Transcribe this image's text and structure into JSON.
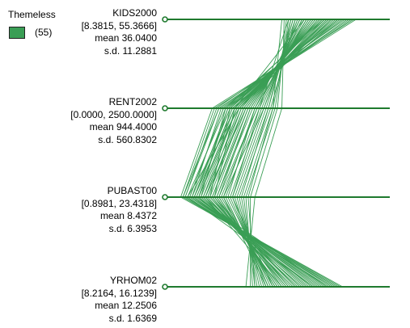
{
  "legend": {
    "title": "Themeless",
    "count_label": "(55)",
    "color": "#3a9e55"
  },
  "chart_data": {
    "type": "parallel_coordinates",
    "series_color": "#3a9e55",
    "axis_color": "#1f7a2e",
    "n_records": 55,
    "axes": [
      {
        "name": "KIDS2000",
        "range_label": "[8.3815, 55.3666]",
        "mean_label": "mean  36.0400",
        "sd_label": "s.d.  11.2881",
        "min": 8.3815,
        "max": 55.3666
      },
      {
        "name": "RENT2002",
        "range_label": "[0.0000, 2500.0000]",
        "mean_label": "mean  944.4000",
        "sd_label": "s.d.  560.8302",
        "min": 0,
        "max": 2500
      },
      {
        "name": "PUBAST00",
        "range_label": "[0.8981, 23.4318]",
        "mean_label": "mean  8.4372",
        "sd_label": "s.d.  6.3953",
        "min": 0.8981,
        "max": 23.4318
      },
      {
        "name": "YRHOM02",
        "range_label": "[8.2164, 16.1239]",
        "mean_label": "mean  12.2506",
        "sd_label": "s.d.  1.6369",
        "min": 8.2164,
        "max": 16.1239
      }
    ],
    "records": [
      [
        0.62,
        0.31,
        0.22,
        0.55
      ],
      [
        0.7,
        0.28,
        0.15,
        0.61
      ],
      [
        0.55,
        0.42,
        0.3,
        0.48
      ],
      [
        0.81,
        0.25,
        0.12,
        0.7
      ],
      [
        0.66,
        0.36,
        0.18,
        0.52
      ],
      [
        0.58,
        0.44,
        0.26,
        0.45
      ],
      [
        0.74,
        0.33,
        0.1,
        0.66
      ],
      [
        0.69,
        0.29,
        0.2,
        0.58
      ],
      [
        0.52,
        0.48,
        0.35,
        0.4
      ],
      [
        0.77,
        0.3,
        0.14,
        0.72
      ],
      [
        0.63,
        0.38,
        0.24,
        0.5
      ],
      [
        0.71,
        0.27,
        0.16,
        0.63
      ],
      [
        0.6,
        0.4,
        0.28,
        0.47
      ],
      [
        0.85,
        0.22,
        0.08,
        0.78
      ],
      [
        0.67,
        0.35,
        0.19,
        0.54
      ],
      [
        0.56,
        0.46,
        0.32,
        0.43
      ],
      [
        0.73,
        0.31,
        0.13,
        0.68
      ],
      [
        0.64,
        0.37,
        0.22,
        0.51
      ],
      [
        0.79,
        0.26,
        0.11,
        0.74
      ],
      [
        0.59,
        0.43,
        0.29,
        0.46
      ],
      [
        0.68,
        0.34,
        0.17,
        0.57
      ],
      [
        0.54,
        0.5,
        0.38,
        0.38
      ],
      [
        0.75,
        0.29,
        0.12,
        0.71
      ],
      [
        0.61,
        0.41,
        0.25,
        0.49
      ],
      [
        0.83,
        0.24,
        0.09,
        0.76
      ],
      [
        0.65,
        0.36,
        0.21,
        0.53
      ],
      [
        0.57,
        0.45,
        0.31,
        0.44
      ],
      [
        0.72,
        0.32,
        0.15,
        0.65
      ],
      [
        0.62,
        0.39,
        0.23,
        0.5
      ],
      [
        0.78,
        0.27,
        0.1,
        0.73
      ],
      [
        0.53,
        0.52,
        0.4,
        0.36
      ],
      [
        0.7,
        0.33,
        0.18,
        0.6
      ],
      [
        0.66,
        0.35,
        0.2,
        0.55
      ],
      [
        0.58,
        0.47,
        0.33,
        0.42
      ],
      [
        0.76,
        0.28,
        0.13,
        0.69
      ],
      [
        0.63,
        0.4,
        0.26,
        0.48
      ],
      [
        0.8,
        0.23,
        0.09,
        0.75
      ],
      [
        0.67,
        0.34,
        0.19,
        0.56
      ],
      [
        0.55,
        0.49,
        0.36,
        0.39
      ],
      [
        0.74,
        0.3,
        0.14,
        0.67
      ],
      [
        0.6,
        0.42,
        0.27,
        0.46
      ],
      [
        0.69,
        0.32,
        0.17,
        0.59
      ],
      [
        0.84,
        0.21,
        0.07,
        0.79
      ],
      [
        0.64,
        0.38,
        0.23,
        0.52
      ],
      [
        0.57,
        0.46,
        0.34,
        0.41
      ],
      [
        0.72,
        0.31,
        0.15,
        0.64
      ],
      [
        0.61,
        0.41,
        0.24,
        0.49
      ],
      [
        0.77,
        0.26,
        0.11,
        0.72
      ],
      [
        0.68,
        0.33,
        0.18,
        0.58
      ],
      [
        0.56,
        0.48,
        0.37,
        0.4
      ],
      [
        0.73,
        0.29,
        0.13,
        0.66
      ],
      [
        0.65,
        0.37,
        0.21,
        0.54
      ],
      [
        0.82,
        0.24,
        0.08,
        0.77
      ],
      [
        0.59,
        0.44,
        0.3,
        0.45
      ],
      [
        0.71,
        0.32,
        0.16,
        0.62
      ]
    ]
  }
}
